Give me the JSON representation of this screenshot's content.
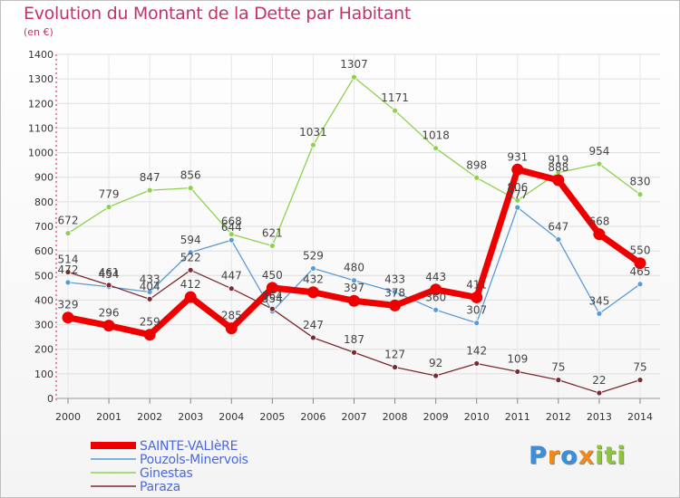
{
  "chart_data": {
    "type": "line",
    "title": "Evolution du Montant de la Dette par Habitant",
    "subtitle": "(en €)",
    "xlabel": "",
    "ylabel": "",
    "ylim": [
      0,
      1400
    ],
    "yticks": [
      0,
      100,
      200,
      300,
      400,
      500,
      600,
      700,
      800,
      900,
      1000,
      1100,
      1200,
      1300,
      1400
    ],
    "x": [
      "2000",
      "2001",
      "2002",
      "2003",
      "2004",
      "2005",
      "2006",
      "2007",
      "2008",
      "2009",
      "2010",
      "2011",
      "2012",
      "2013",
      "2014"
    ],
    "grid": true,
    "legend_position": "bottom-left",
    "series": [
      {
        "name": "SAINTE-VALIèRE",
        "color": "#ee0000",
        "values": [
          329,
          296,
          259,
          412,
          285,
          450,
          432,
          397,
          378,
          443,
          411,
          931,
          888,
          668,
          550
        ]
      },
      {
        "name": "Pouzols-Minervois",
        "color": "#5b9bd5",
        "values": [
          472,
          454,
          433,
          594,
          644,
          354,
          529,
          480,
          433,
          360,
          307,
          777,
          647,
          345,
          465
        ]
      },
      {
        "name": "Ginestas",
        "color": "#8fd14f",
        "values": [
          672,
          779,
          847,
          856,
          668,
          621,
          1031,
          1307,
          1171,
          1018,
          898,
          806,
          919,
          954,
          830
        ]
      },
      {
        "name": "Paraza",
        "color": "#7a2a30",
        "values": [
          514,
          461,
          404,
          522,
          447,
          364,
          247,
          187,
          127,
          92,
          142,
          109,
          75,
          22,
          75
        ]
      }
    ]
  },
  "logo": {
    "letters": [
      "P",
      "r",
      "o",
      "x",
      "i",
      "t",
      "i"
    ],
    "colors": [
      "#3a8fd8",
      "#f08a1c",
      "#3a8fd8",
      "#f08a1c",
      "#8fc43f",
      "#8fc43f",
      "#8fc43f"
    ]
  }
}
